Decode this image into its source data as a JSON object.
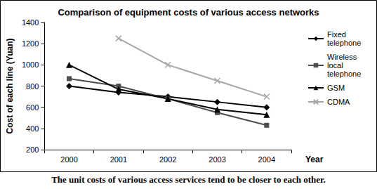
{
  "chart_data": {
    "type": "line",
    "title": "Comparison of equipment costs of various access networks",
    "caption": "The unit costs of various access services tend to be closer to each other.",
    "x_label": "Year",
    "y_label": "Cost of each line (Yuan)",
    "categories": [
      "2000",
      "2001",
      "2002",
      "2003",
      "2004"
    ],
    "series": [
      {
        "name": "Fixed telephone",
        "color": "#000000",
        "marker": "diamond",
        "values": [
          800,
          740,
          700,
          650,
          600
        ]
      },
      {
        "name": "Wireless local telephone",
        "color": "#4d4d4d",
        "marker": "square",
        "values": [
          870,
          800,
          680,
          550,
          430
        ]
      },
      {
        "name": "GSM",
        "color": "#000000",
        "marker": "triangle",
        "values": [
          1000,
          770,
          680,
          580,
          530
        ]
      },
      {
        "name": "CDMA",
        "color": "#a6a6a6",
        "marker": "x",
        "values": [
          null,
          1250,
          1000,
          850,
          700
        ]
      }
    ],
    "ylim": [
      200,
      1400
    ],
    "yticks": [
      200,
      400,
      600,
      800,
      1000,
      1200,
      1400
    ],
    "grid": false,
    "legend": "right"
  }
}
